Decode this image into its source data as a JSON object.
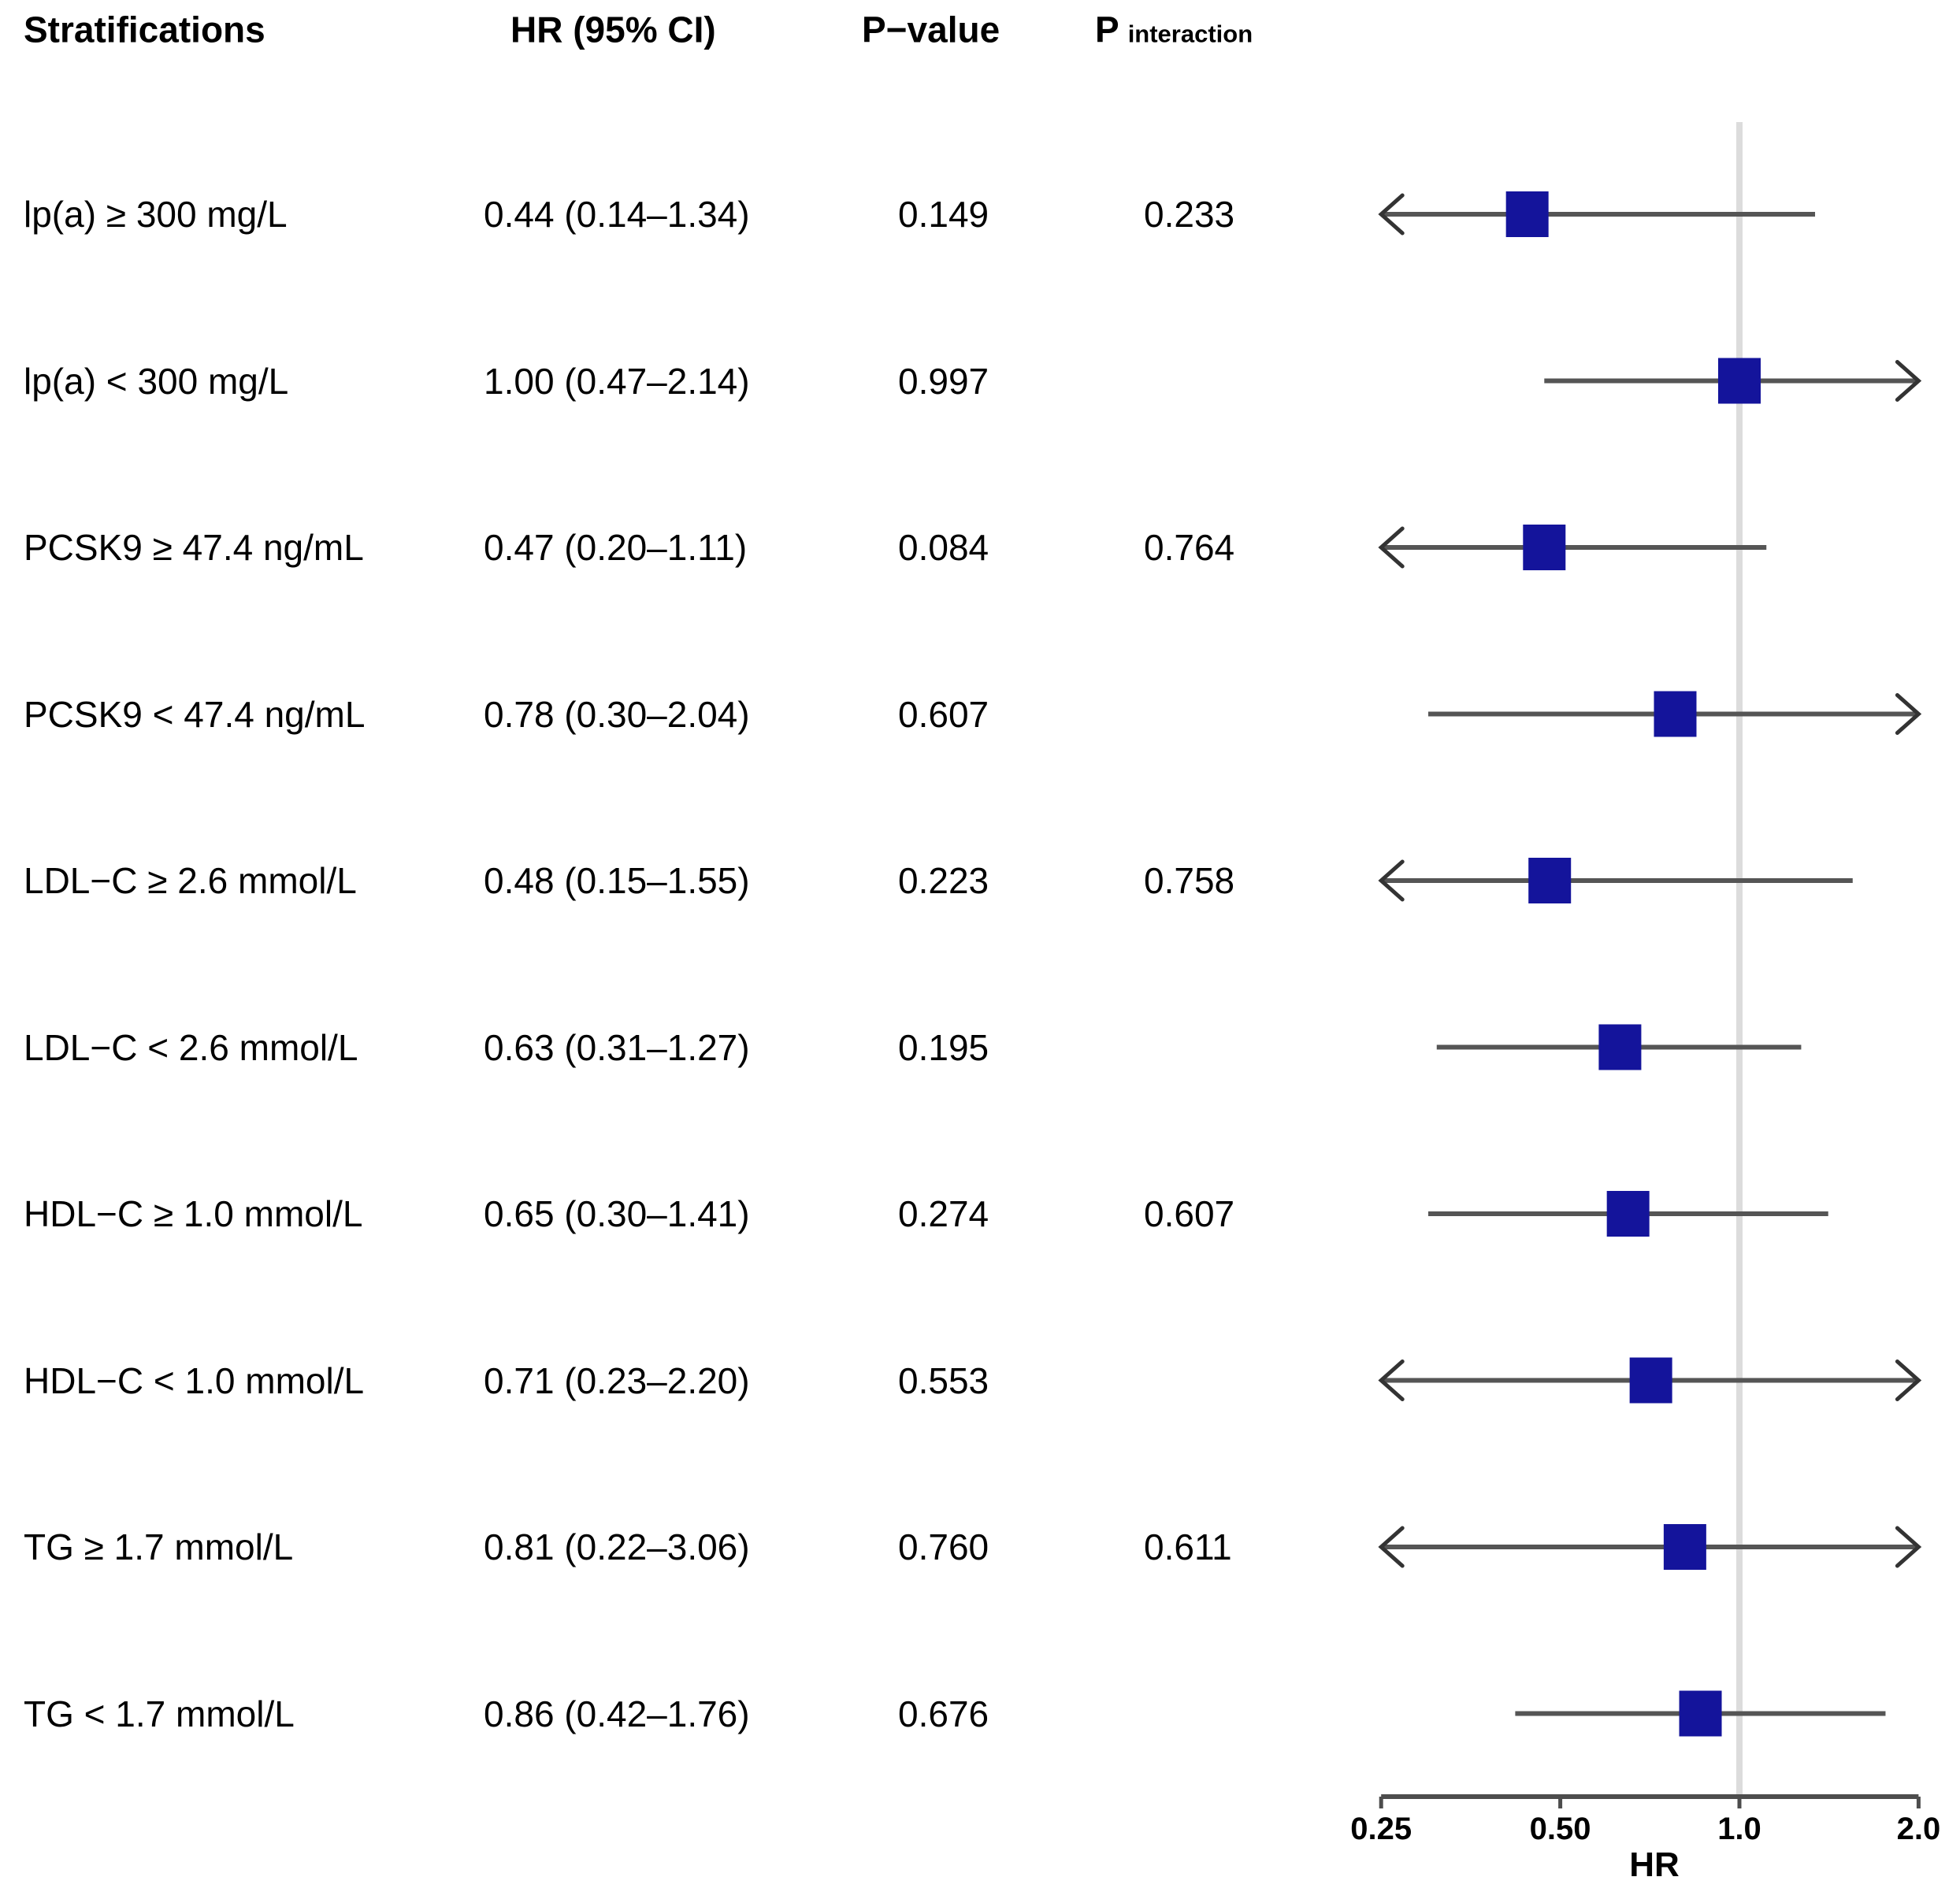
{
  "chart_data": {
    "type": "forest",
    "columns": {
      "stratifications": "Stratifications",
      "hr_ci": "HR (95% CI)",
      "p_value": "P−value",
      "p_interaction_main": "P",
      "p_interaction_sub": "interaction"
    },
    "axis": {
      "label": "HR",
      "scale": "log2",
      "min": 0.25,
      "max": 2.0,
      "ref_line": 1.0,
      "ticks": [
        0.25,
        0.5,
        1.0,
        2.0
      ],
      "tick_labels": [
        "0.25",
        "0.50",
        "1.0",
        "2.0"
      ]
    },
    "rows": [
      {
        "label": "lp(a) ≥ 300 mg/L",
        "hr_ci": "0.44 (0.14–1.34)",
        "p_value": "0.149",
        "p_interaction": "0.233",
        "hr": 0.44,
        "lcl": 0.14,
        "ucl": 1.34
      },
      {
        "label": "lp(a) < 300 mg/L",
        "hr_ci": "1.00 (0.47–2.14)",
        "p_value": "0.997",
        "p_interaction": "",
        "hr": 1.0,
        "lcl": 0.47,
        "ucl": 2.14
      },
      {
        "label": "PCSK9 ≥ 47.4 ng/mL",
        "hr_ci": "0.47 (0.20–1.11)",
        "p_value": "0.084",
        "p_interaction": "0.764",
        "hr": 0.47,
        "lcl": 0.2,
        "ucl": 1.11
      },
      {
        "label": "PCSK9 < 47.4 ng/mL",
        "hr_ci": "0.78 (0.30–2.04)",
        "p_value": "0.607",
        "p_interaction": "",
        "hr": 0.78,
        "lcl": 0.3,
        "ucl": 2.04
      },
      {
        "label": "LDL−C ≥ 2.6 mmol/L",
        "hr_ci": "0.48 (0.15–1.55)",
        "p_value": "0.223",
        "p_interaction": "0.758",
        "hr": 0.48,
        "lcl": 0.15,
        "ucl": 1.55
      },
      {
        "label": "LDL−C < 2.6 mmol/L",
        "hr_ci": "0.63 (0.31–1.27)",
        "p_value": "0.195",
        "p_interaction": "",
        "hr": 0.63,
        "lcl": 0.31,
        "ucl": 1.27
      },
      {
        "label": "HDL−C ≥ 1.0 mmol/L",
        "hr_ci": "0.65 (0.30–1.41)",
        "p_value": "0.274",
        "p_interaction": "0.607",
        "hr": 0.65,
        "lcl": 0.3,
        "ucl": 1.41
      },
      {
        "label": "HDL−C < 1.0 mmol/L",
        "hr_ci": "0.71 (0.23–2.20)",
        "p_value": "0.553",
        "p_interaction": "",
        "hr": 0.71,
        "lcl": 0.23,
        "ucl": 2.2
      },
      {
        "label": "TG ≥ 1.7 mmol/L",
        "hr_ci": "0.81 (0.22–3.06)",
        "p_value": "0.760",
        "p_interaction": "0.611",
        "hr": 0.81,
        "lcl": 0.22,
        "ucl": 3.06
      },
      {
        "label": "TG < 1.7 mmol/L",
        "hr_ci": "0.86 (0.42–1.76)",
        "p_value": "0.676",
        "p_interaction": "",
        "hr": 0.86,
        "lcl": 0.42,
        "ucl": 1.76
      }
    ],
    "colors": {
      "marker": "#14149b",
      "ci_line": "#555555",
      "arrow": "#333333",
      "axis": "#4d4d4d",
      "reference_line": "#dcdcdc"
    }
  }
}
